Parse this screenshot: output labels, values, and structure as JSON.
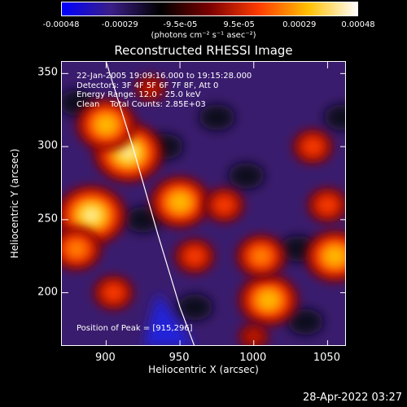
{
  "colorbar": {
    "ticks": [
      "-0.00048",
      "-0.00029",
      "-9.5e-05",
      "9.5e-05",
      "0.00029",
      "0.00048"
    ],
    "tick_values": [
      -0.00048,
      -0.00029,
      -9.5e-05,
      9.5e-05,
      0.00029,
      0.00048
    ],
    "unit_label": "(photons cm⁻² s⁻¹ asec⁻²)",
    "colors": [
      "#0000ff",
      "#3b1f86",
      "#000000",
      "#7a0000",
      "#ff3c00",
      "#ffc000",
      "#ffffff"
    ]
  },
  "chart_data": {
    "type": "heatmap",
    "title": "Reconstructed RHESSI Image",
    "xlabel": "Heliocentric X (arcsec)",
    "ylabel": "Heliocentric Y (arcsec)",
    "xlim": [
      870,
      1063
    ],
    "ylim": [
      163,
      358
    ],
    "xticks": [
      900,
      950,
      1000,
      1050
    ],
    "yticks": [
      200,
      250,
      300,
      350
    ],
    "info_lines": [
      "22-Jan-2005 19:09:16.000 to 19:15:28.000",
      "Detectors: 3F 4F 5F 6F 7F 8F, Att 0",
      "Energy Range: 12.0 - 25.0 keV",
      "Clean    Total Counts: 2.85E+03"
    ],
    "peak_label": "Position of Peak = [915,296]",
    "peak": [
      915,
      296
    ],
    "limb_color": "#ffffff",
    "sources": [
      {
        "x": 890,
        "y": 253,
        "level": 1.0
      },
      {
        "x": 915,
        "y": 296,
        "level": 1.0
      },
      {
        "x": 900,
        "y": 315,
        "level": 0.85
      },
      {
        "x": 880,
        "y": 230,
        "level": 0.6
      },
      {
        "x": 905,
        "y": 200,
        "level": 0.45
      },
      {
        "x": 950,
        "y": 262,
        "level": 0.75
      },
      {
        "x": 960,
        "y": 225,
        "level": 0.55
      },
      {
        "x": 980,
        "y": 260,
        "level": 0.55
      },
      {
        "x": 1010,
        "y": 195,
        "level": 0.85
      },
      {
        "x": 1005,
        "y": 225,
        "level": 0.6
      },
      {
        "x": 1055,
        "y": 225,
        "level": 0.8
      },
      {
        "x": 1050,
        "y": 260,
        "level": 0.55
      },
      {
        "x": 1040,
        "y": 300,
        "level": 0.45
      },
      {
        "x": 930,
        "y": 340,
        "level": 0.4
      },
      {
        "x": 1000,
        "y": 170,
        "level": 0.4
      }
    ]
  },
  "footer": {
    "date": "28-Apr-2022 03:27"
  }
}
